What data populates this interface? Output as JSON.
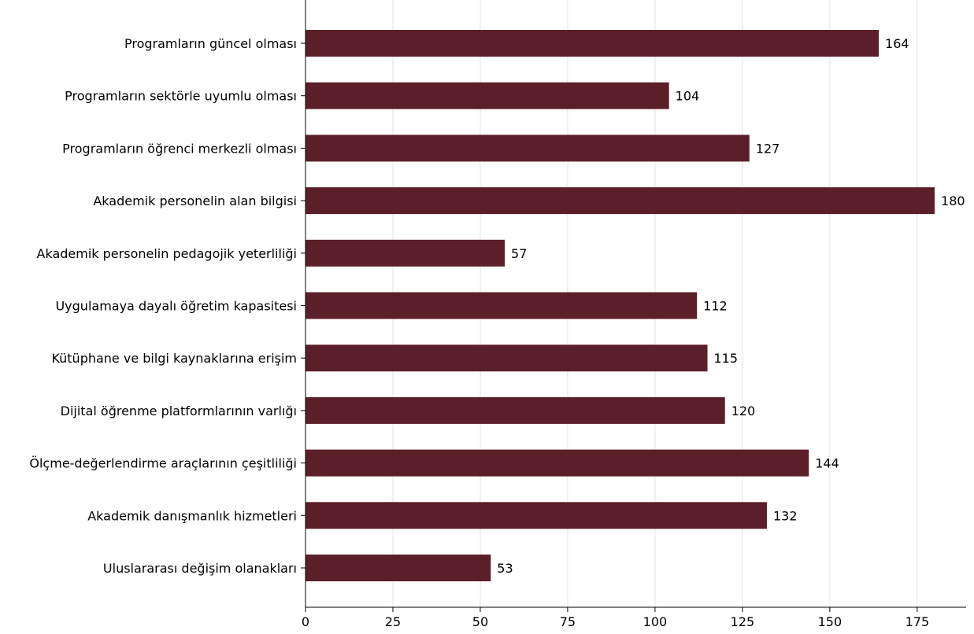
{
  "chart_data": {
    "type": "bar",
    "orientation": "horizontal",
    "categories": [
      "Programların güncel olması",
      "Programların sektörle uyumlu olması",
      "Programların öğrenci merkezli olması",
      "Akademik personelin alan bilgisi",
      "Akademik personelin pedagojik yeterliliği",
      "Uygulamaya dayalı öğretim kapasitesi",
      "Kütüphane ve bilgi kaynaklarına erişim",
      "Dijital öğrenme platformlarının varlığı",
      "Ölçme-değerlendirme araçlarının çeşitliliği",
      "Akademik danışmanlık hizmetleri",
      "Uluslararası değişim olanakları"
    ],
    "values": [
      164,
      104,
      127,
      180,
      57,
      112,
      115,
      120,
      144,
      132,
      53
    ],
    "data_labels": [
      "164",
      "104",
      "127",
      "180",
      "57",
      "112",
      "115",
      "120",
      "144",
      "132",
      "53"
    ],
    "xticks": [
      0,
      25,
      50,
      75,
      100,
      125,
      150,
      175
    ],
    "xtick_labels": [
      "0",
      "25",
      "50",
      "75",
      "100",
      "125",
      "150",
      "175"
    ],
    "xlim": [
      0,
      189
    ],
    "title": "",
    "xlabel": "",
    "ylabel": "",
    "grid": "vertical",
    "legend": "none",
    "bar_color": "#5b1f2a",
    "grid_color": "#e3e3e3",
    "axis_color": "#000000"
  }
}
